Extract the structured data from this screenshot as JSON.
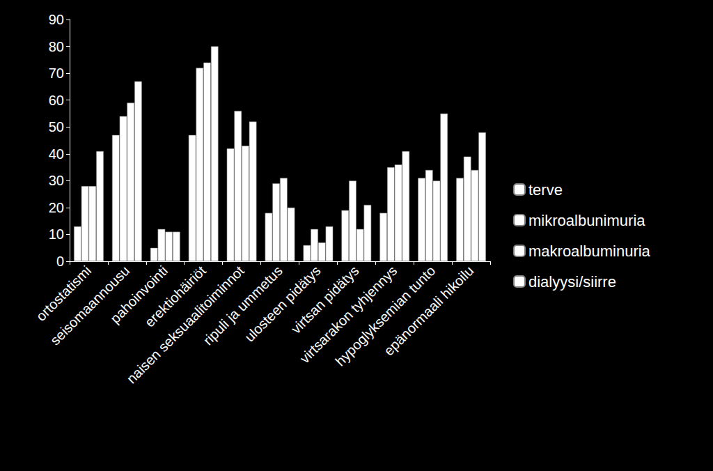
{
  "chart_data": {
    "type": "bar",
    "categories": [
      "ortostatismi",
      "seisomaannousu",
      "pahoinvointi",
      "erektiohäiriöt",
      "naisen seksuaalitoiminnot",
      "ripuli ja ummetus",
      "ulosteen pidätys",
      "virtsan pidätys",
      "virtsarakon tyhjennys",
      "hypoglyksemian tunto",
      "epänormaali hikoilu"
    ],
    "series": [
      {
        "name": "terve",
        "color": "#ffffff",
        "values": [
          13,
          47,
          5,
          47,
          42,
          18,
          6,
          19,
          18,
          31,
          31
        ]
      },
      {
        "name": "mikroalbunimuria",
        "color": "#ffffff",
        "values": [
          28,
          54,
          12,
          72,
          56,
          29,
          12,
          30,
          35,
          34,
          39
        ]
      },
      {
        "name": "makroalbuminuria",
        "color": "#ffffff",
        "values": [
          28,
          59,
          11,
          74,
          43,
          31,
          7,
          12,
          36,
          30,
          34
        ]
      },
      {
        "name": "dialyysi/siirre",
        "color": "#ffffff",
        "values": [
          41,
          67,
          11,
          80,
          52,
          20,
          13,
          21,
          41,
          55,
          48
        ]
      }
    ],
    "ylim": [
      0,
      90
    ],
    "yticks": [
      0,
      10,
      20,
      30,
      40,
      50,
      60,
      70,
      80,
      90
    ],
    "grid": false,
    "legend": "right"
  }
}
